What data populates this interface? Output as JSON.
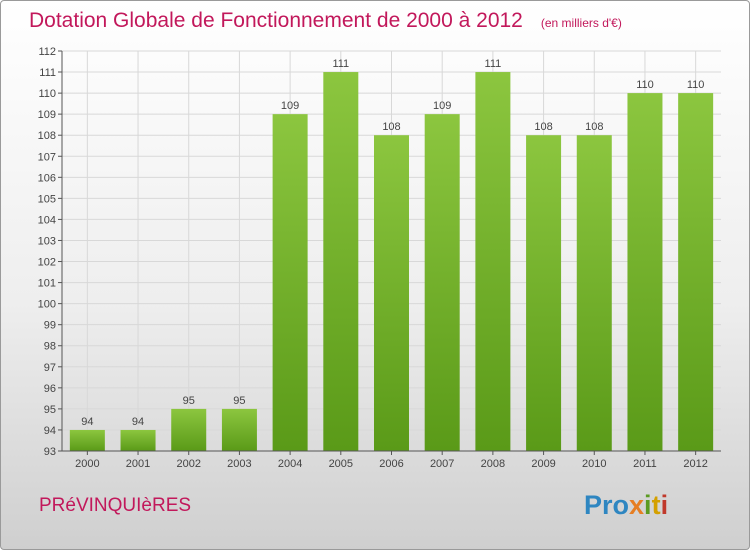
{
  "chart_data": {
    "type": "bar",
    "title": "Dotation Globale de Fonctionnement de 2000 à 2012",
    "subtitle": "(en milliers d'€)",
    "categories": [
      "2000",
      "2001",
      "2002",
      "2003",
      "2004",
      "2005",
      "2006",
      "2007",
      "2008",
      "2009",
      "2010",
      "2011",
      "2012"
    ],
    "values": [
      94,
      94,
      95,
      95,
      109,
      111,
      108,
      109,
      111,
      108,
      108,
      110,
      110
    ],
    "ylim": [
      93,
      112
    ],
    "yticks": [
      93,
      94,
      95,
      96,
      97,
      98,
      99,
      100,
      101,
      102,
      103,
      104,
      105,
      106,
      107,
      108,
      109,
      110,
      111,
      112
    ],
    "grid": true,
    "bar_color": "#8cc63f",
    "bar_color_dark": "#5a9a18"
  },
  "footer": {
    "commune": "PRéVINQUIèRES",
    "brand": [
      "Pro",
      "x",
      "i",
      "t",
      "i"
    ]
  },
  "colors": {
    "title": "#c2185b",
    "axis": "#555555",
    "grid": "#d8d8d8"
  }
}
